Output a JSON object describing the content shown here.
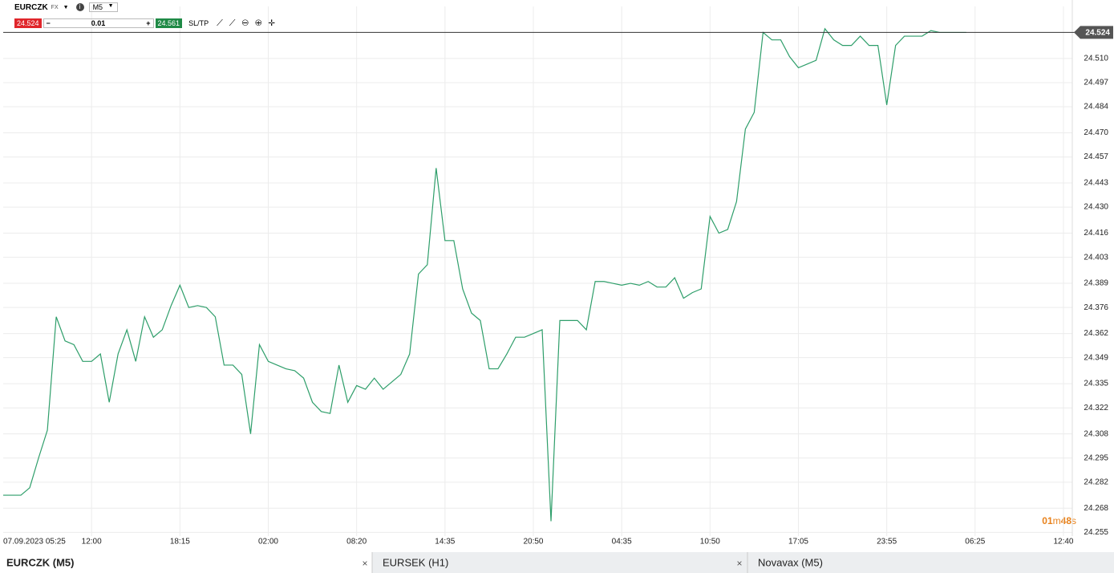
{
  "toolbar": {
    "symbol": "EURCZK",
    "market": "FX",
    "timeframe": "M5",
    "sell": "24.524",
    "quantity": "0.01",
    "buy": "24.561",
    "sltp": "SL/TP"
  },
  "chart_data": {
    "type": "line",
    "series": [
      {
        "name": "EURCZK",
        "color": "#2e9e6a",
        "values": [
          24.275,
          24.275,
          24.275,
          24.279,
          24.295,
          24.31,
          24.371,
          24.358,
          24.356,
          24.347,
          24.347,
          24.351,
          24.325,
          24.351,
          24.364,
          24.347,
          24.371,
          24.36,
          24.364,
          24.377,
          24.388,
          24.376,
          24.377,
          24.376,
          24.371,
          24.345,
          24.345,
          24.34,
          24.308,
          24.356,
          24.347,
          24.345,
          24.343,
          24.342,
          24.338,
          24.325,
          24.32,
          24.319,
          24.345,
          24.325,
          24.334,
          24.332,
          24.338,
          24.332,
          24.336,
          24.34,
          24.351,
          24.394,
          24.399,
          24.451,
          24.412,
          24.412,
          24.386,
          24.373,
          24.369,
          24.343,
          24.343,
          24.351,
          24.36,
          24.36,
          24.362,
          24.364,
          24.261,
          24.369,
          24.369,
          24.369,
          24.364,
          24.39,
          24.39,
          24.389,
          24.388,
          24.389,
          24.388,
          24.39,
          24.387,
          24.387,
          24.392,
          24.381,
          24.384,
          24.386,
          24.425,
          24.416,
          24.418,
          24.433,
          24.472,
          24.481,
          24.524,
          24.52,
          24.52,
          24.511,
          24.505,
          24.507,
          24.509,
          24.526,
          24.52,
          24.517,
          24.517,
          24.522,
          24.517,
          24.517,
          24.485,
          24.517,
          24.522,
          24.522,
          24.522,
          24.525,
          24.524,
          24.524,
          24.524,
          24.524
        ]
      }
    ],
    "xlim": [
      0,
      121
    ],
    "xticks": [
      {
        "value": 0,
        "label": "07.09.2023 05:25"
      },
      {
        "value": 10,
        "label": "12:00"
      },
      {
        "value": 20,
        "label": "18:15"
      },
      {
        "value": 30,
        "label": "02:00"
      },
      {
        "value": 40,
        "label": "08:20"
      },
      {
        "value": 50,
        "label": "14:35"
      },
      {
        "value": 60,
        "label": "20:50"
      },
      {
        "value": 70,
        "label": "04:35"
      },
      {
        "value": 80,
        "label": "10:50"
      },
      {
        "value": 90,
        "label": "17:05"
      },
      {
        "value": 100,
        "label": "23:55"
      },
      {
        "value": 110,
        "label": "06:25"
      },
      {
        "value": 120,
        "label": "12:40"
      }
    ],
    "ylim": [
      24.253,
      24.538
    ],
    "yticks": [
      24.255,
      24.268,
      24.282,
      24.295,
      24.308,
      24.322,
      24.335,
      24.349,
      24.362,
      24.376,
      24.389,
      24.403,
      24.416,
      {
        "value": 24.43,
        "label": "24.430"
      },
      24.443,
      24.457,
      {
        "value": 24.47,
        "label": "24.470"
      },
      24.484,
      24.497,
      {
        "value": 24.51,
        "label": "24.510"
      }
    ],
    "current_price": 24.524,
    "grid": true
  },
  "timer": [
    "01",
    "m",
    "48",
    "s"
  ],
  "tabs": [
    "EURCZK (M5)",
    "EURSEK (H1)",
    "Novavax (M5)"
  ]
}
